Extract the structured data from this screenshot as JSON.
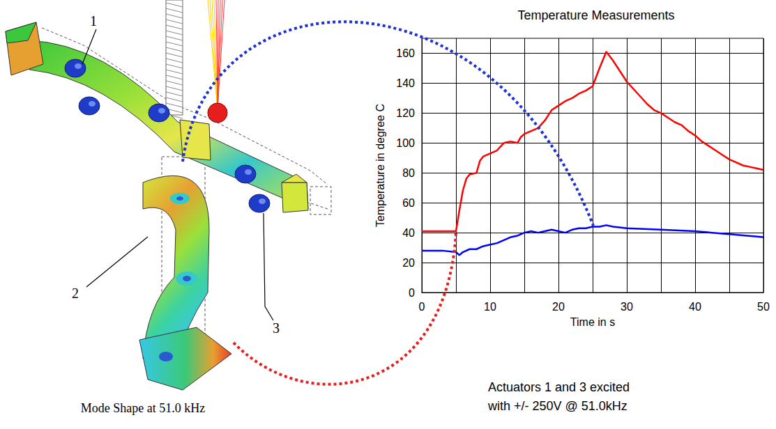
{
  "chart_data": {
    "type": "line",
    "title": "Temperature Measurements",
    "x_label": "Time in s",
    "y_label": "Temperature in degree C",
    "xlim": [
      0,
      50
    ],
    "xticks": [
      0,
      10,
      20,
      30,
      40,
      50
    ],
    "ylim": [
      0,
      170
    ],
    "yticks": [
      0,
      20,
      40,
      60,
      80,
      100,
      120,
      140,
      160
    ],
    "grid": true,
    "series": [
      {
        "color": "#ff0000",
        "line_style": "solid",
        "x": [
          0,
          2,
          4,
          5,
          5.5,
          6,
          6.5,
          7,
          8,
          8.5,
          9,
          10,
          11,
          12,
          13,
          14,
          14.5,
          15,
          16,
          17,
          18,
          19,
          20,
          21,
          22,
          23,
          24,
          25,
          26,
          27,
          28,
          29,
          30,
          31,
          32,
          33,
          34,
          35,
          36,
          37,
          38,
          39,
          40,
          41,
          42,
          43,
          44,
          45,
          46,
          47,
          48,
          49,
          50
        ],
        "values": [
          41,
          41,
          41,
          41,
          55,
          68,
          76,
          79,
          80,
          88,
          91,
          93,
          95,
          100,
          101,
          100,
          104,
          106,
          108,
          110,
          115,
          122,
          125,
          128,
          130,
          133,
          135,
          138,
          150,
          161,
          155,
          148,
          141,
          136,
          131,
          126,
          122,
          120,
          117,
          114,
          112,
          108,
          105,
          101,
          98,
          95,
          92,
          89,
          87,
          85,
          84,
          83,
          82
        ]
      },
      {
        "color": "#0000ff",
        "line_style": "solid",
        "x": [
          0,
          3,
          5,
          5.5,
          6,
          7,
          8,
          9,
          10,
          11,
          12,
          13,
          14,
          15,
          16,
          17,
          18,
          19,
          20,
          21,
          22,
          23,
          24,
          25,
          26,
          27,
          28,
          30,
          35,
          40,
          45,
          50
        ],
        "values": [
          28,
          28,
          27,
          25,
          27,
          29,
          29,
          31,
          32,
          33,
          35,
          37,
          38,
          40,
          41,
          40,
          41,
          42,
          41,
          40,
          42,
          43,
          43,
          44,
          44,
          45,
          44,
          43,
          42,
          41,
          39,
          37
        ]
      }
    ],
    "annotations": [
      "Actuators 1 and 3 excited",
      "with +/- 250V @ 51.0kHz"
    ]
  },
  "diagram": {
    "caption": "Mode Shape at 51.0 kHz",
    "labels": [
      "1",
      "2",
      "3"
    ]
  }
}
